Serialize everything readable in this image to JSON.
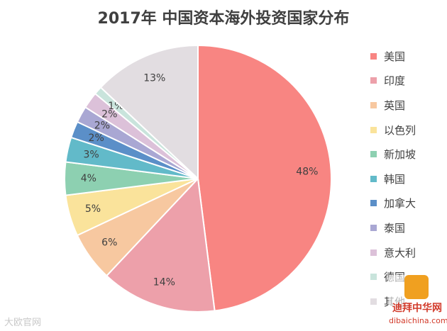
{
  "chart_data": {
    "type": "pie",
    "title": "2017年 中国资本海外投资国家分布",
    "categories": [
      "美国",
      "印度",
      "英国",
      "以色列",
      "新加坡",
      "韩国",
      "加拿大",
      "泰国",
      "意大利",
      "德国",
      "其他"
    ],
    "values": [
      48,
      14,
      6,
      5,
      4,
      3,
      2,
      2,
      2,
      1,
      13
    ],
    "value_suffix": "%",
    "colors": [
      "#f88582",
      "#eda0aa",
      "#f7c8a0",
      "#fae39b",
      "#8dd0b1",
      "#62bac9",
      "#5b8fc8",
      "#a9a7d3",
      "#dcc1d9",
      "#c9e4dc",
      "#e2dde1"
    ],
    "legend_position": "right"
  },
  "watermarks": {
    "left": "大欧官网",
    "right_logo": "迪拜中华网",
    "right_site": "dibaichina.com"
  }
}
